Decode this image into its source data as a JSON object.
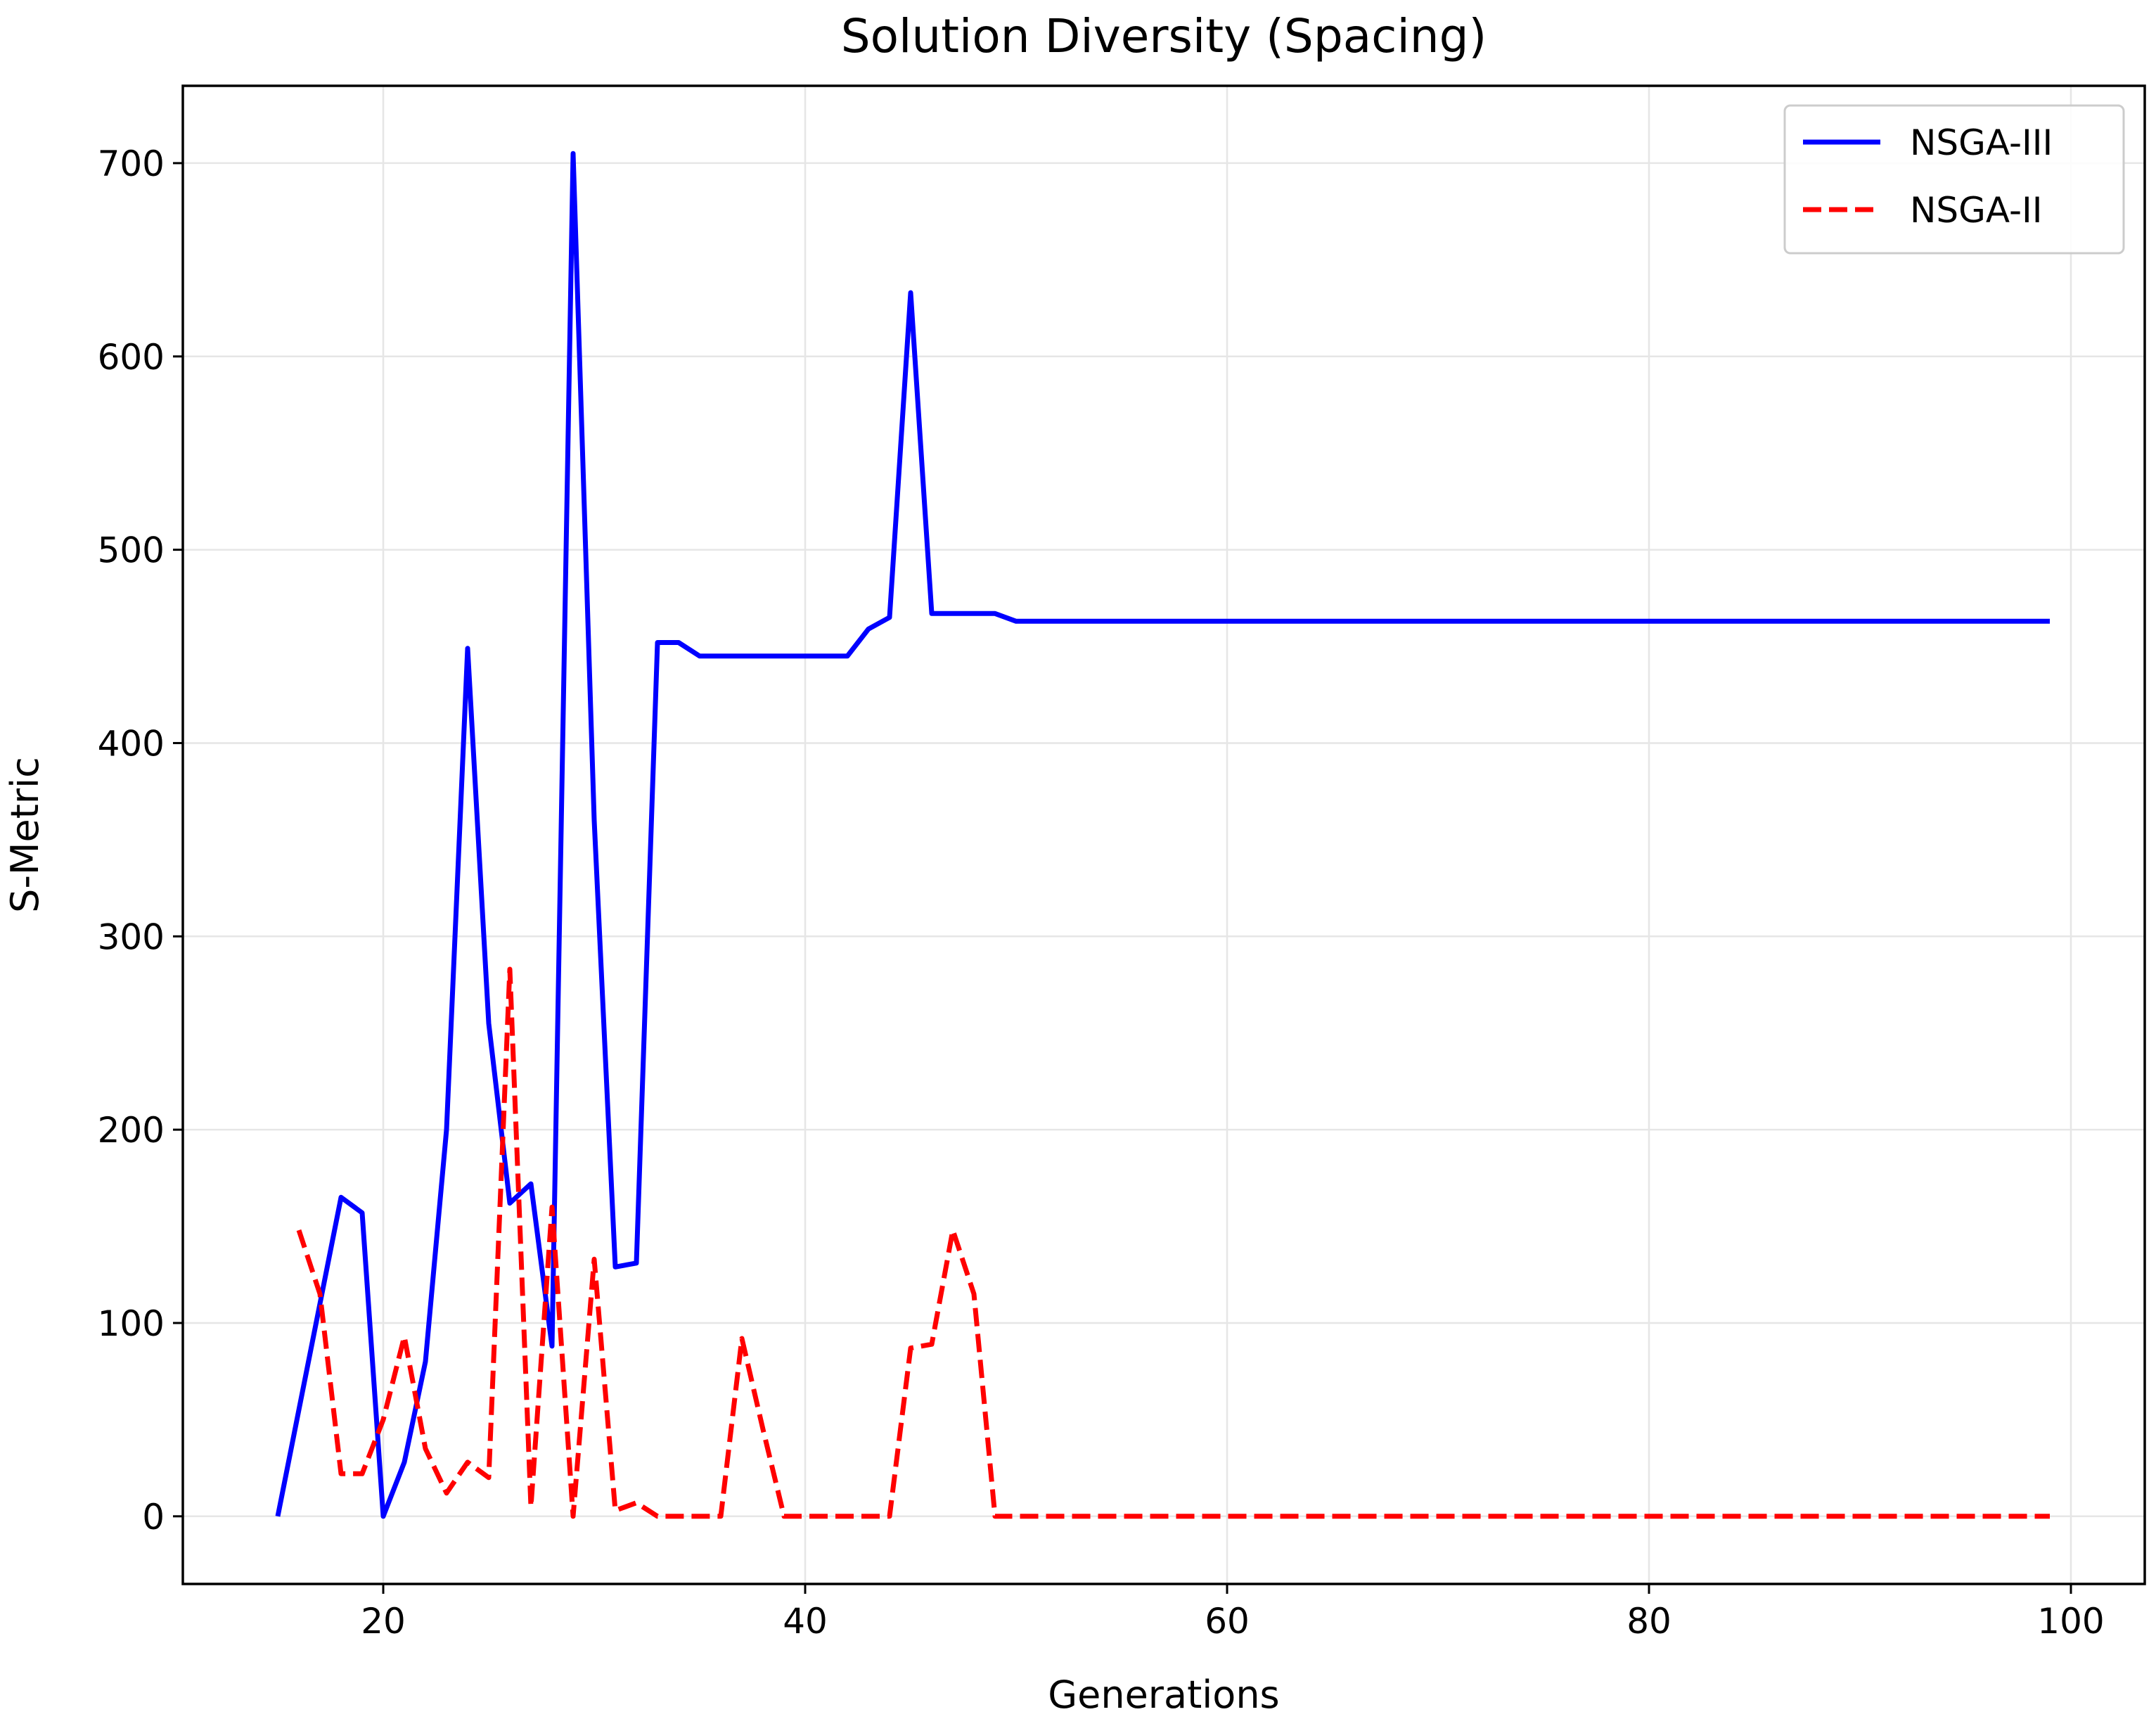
{
  "chart_data": {
    "type": "line",
    "title": "Solution Diversity (Spacing)",
    "xlabel": "Generations",
    "ylabel": "S-Metric",
    "xlim": [
      10.5,
      103.5
    ],
    "ylim": [
      -35,
      740
    ],
    "xticks": [
      20,
      40,
      60,
      80,
      100
    ],
    "yticks": [
      0,
      100,
      200,
      300,
      400,
      500,
      600,
      700
    ],
    "xtick_labels": [
      "20",
      "40",
      "60",
      "80",
      "100"
    ],
    "ytick_labels": [
      "0",
      "100",
      "200",
      "300",
      "400",
      "500",
      "600",
      "700"
    ],
    "grid": true,
    "legend_position": "top-right",
    "series": [
      {
        "name": "NSGA-III",
        "color": "#0000ff",
        "style": "solid",
        "x": [
          15,
          16,
          17,
          18,
          19,
          20,
          21,
          22,
          23,
          24,
          25,
          26,
          27,
          28,
          29,
          30,
          31,
          32,
          33,
          34,
          35,
          36,
          37,
          38,
          39,
          40,
          41,
          42,
          43,
          44,
          45,
          46,
          47,
          48,
          49,
          50,
          55,
          60,
          70,
          80,
          90,
          99
        ],
        "y": [
          0,
          55,
          110,
          165,
          157,
          0,
          28,
          80,
          200,
          449,
          255,
          162,
          172,
          88,
          705,
          360,
          129,
          131,
          452,
          452,
          445,
          445,
          445,
          445,
          445,
          445,
          445,
          445,
          459,
          465,
          633,
          467,
          467,
          467,
          467,
          463,
          463,
          463,
          463,
          463,
          463,
          463
        ]
      },
      {
        "name": "NSGA-II",
        "color": "#ff0000",
        "style": "dashed",
        "x": [
          16,
          17,
          18,
          19,
          20,
          21,
          22,
          23,
          24,
          25,
          26,
          27,
          28,
          29,
          30,
          31,
          32,
          33,
          34,
          35,
          36,
          37,
          38,
          39,
          40,
          41,
          42,
          43,
          44,
          45,
          46,
          47,
          48,
          49,
          50,
          60,
          70,
          80,
          90,
          99
        ],
        "y": [
          148,
          115,
          22,
          22,
          50,
          93,
          35,
          12,
          28,
          20,
          283,
          5,
          160,
          0,
          133,
          3,
          7,
          0,
          0,
          0,
          0,
          92,
          45,
          0,
          0,
          0,
          0,
          0,
          0,
          87,
          89,
          148,
          115,
          0,
          0,
          0,
          0,
          0,
          0,
          0
        ]
      }
    ]
  }
}
